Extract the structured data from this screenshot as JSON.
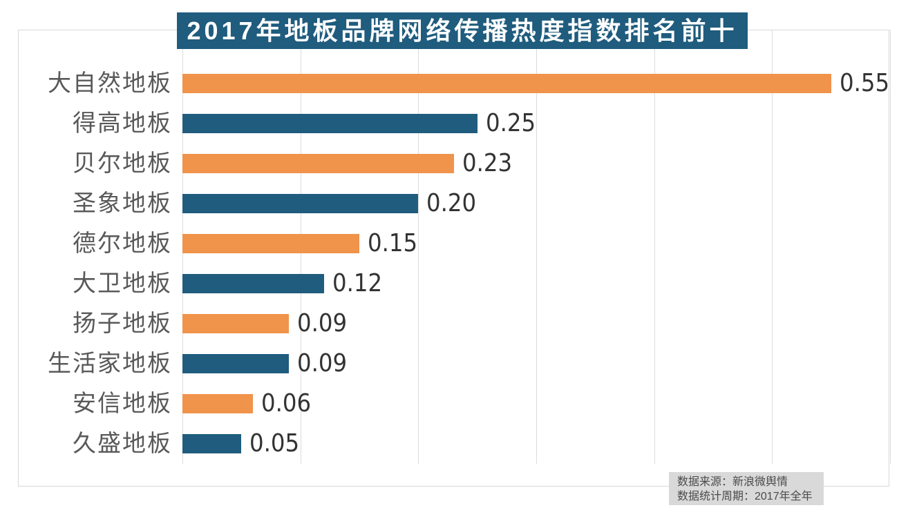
{
  "chart_data": {
    "type": "bar",
    "orientation": "horizontal",
    "title": "2017年地板品牌网络传播热度指数排名前十",
    "categories": [
      "大自然地板",
      "得高地板",
      "贝尔地板",
      "圣象地板",
      "德尔地板",
      "大卫地板",
      "扬子地板",
      "生活家地板",
      "安信地板",
      "久盛地板"
    ],
    "values": [
      0.55,
      0.25,
      0.23,
      0.2,
      0.15,
      0.12,
      0.09,
      0.09,
      0.06,
      0.05
    ],
    "value_labels": [
      "0.55",
      "0.25",
      "0.23",
      "0.20",
      "0.15",
      "0.12",
      "0.09",
      "0.09",
      "0.06",
      "0.05"
    ],
    "xlim": [
      0,
      0.6
    ],
    "gridline_interval": 0.1,
    "grid": true,
    "legend": "none",
    "bar_color_pattern": [
      "#F0934B",
      "#1F5C7E"
    ]
  },
  "footer": {
    "source_line": "数据来源：新浪微舆情",
    "period_line": "数据统计周期：2017年全年"
  },
  "colors": {
    "title_bg": "#1F5C7E",
    "title_text": "#FFFFFF",
    "bar_orange": "#F0934B",
    "bar_teal": "#1F5C7E",
    "gridline": "#DCDCDC",
    "chart_border": "#D8D8D8",
    "category_text": "#595959",
    "value_text": "#333333",
    "footer_bg": "#D9D9D9",
    "footer_text": "#4A4A4A"
  }
}
